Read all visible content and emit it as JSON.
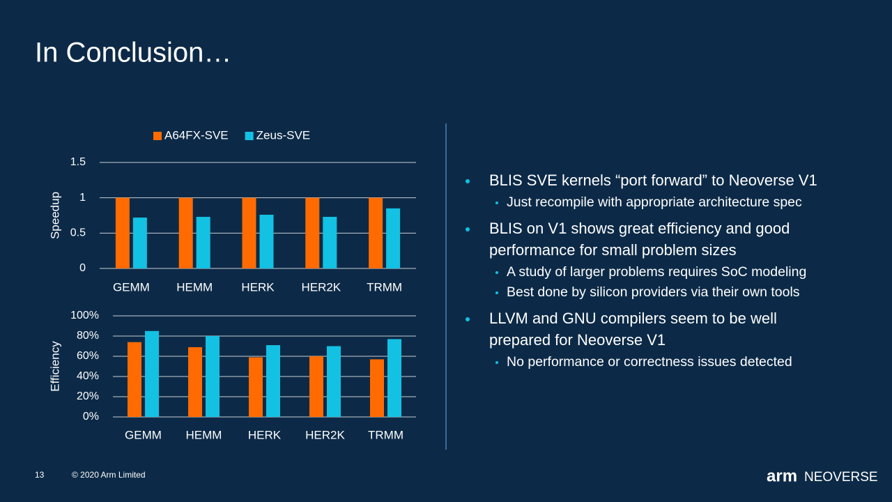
{
  "slide": {
    "title": "In Conclusion…",
    "bullets": [
      {
        "lines": [
          "BLIS SVE kernels “port forward” to Neoverse V1"
        ],
        "sub": [
          "Just recompile with appropriate architecture spec"
        ]
      },
      {
        "lines": [
          "BLIS on V1 shows great efficiency and good",
          "performance for small problem sizes"
        ],
        "sub": [
          "A study of larger problems requires SoC modeling",
          "Best done by silicon providers via their own tools"
        ]
      },
      {
        "lines": [
          "LLVM and GNU compilers seem to be well",
          "prepared for Neoverse V1"
        ],
        "sub": [
          "No performance or correctness issues detected"
        ]
      }
    ],
    "footer": {
      "page": "13",
      "copyright": "© 2020 Arm Limited",
      "logo": "arm",
      "product": "NEOVERSE"
    }
  },
  "chart_data": [
    {
      "type": "bar",
      "ylabel": "Speedup",
      "legend": "top",
      "categories": [
        "GEMM",
        "HEMM",
        "HERK",
        "HER2K",
        "TRMM"
      ],
      "series": [
        {
          "name": "A64FX-SVE",
          "color": "#ff6b00",
          "values": [
            1,
            1,
            1,
            1,
            1
          ]
        },
        {
          "name": "Zeus-SVE",
          "color": "#13c1e3",
          "values": [
            0.72,
            0.73,
            0.76,
            0.73,
            0.85
          ]
        }
      ],
      "ylim": [
        0,
        1.5
      ],
      "yticks": [
        0,
        0.5,
        1,
        1.5
      ],
      "grid": true
    },
    {
      "type": "bar",
      "ylabel": "Efficiency",
      "categories": [
        "GEMM",
        "HEMM",
        "HERK",
        "HER2K",
        "TRMM"
      ],
      "series": [
        {
          "color": "#ff6b00",
          "values": [
            74,
            69,
            59,
            60,
            57
          ]
        },
        {
          "color": "#13c1e3",
          "values": [
            85,
            80,
            71,
            70,
            77
          ]
        }
      ],
      "ylim": [
        0,
        100
      ],
      "yticks": [
        {
          "value": 0,
          "label": "0%"
        },
        {
          "value": 20,
          "label": "20%"
        },
        {
          "value": 40,
          "label": "40%"
        },
        {
          "value": 60,
          "label": "60%"
        },
        {
          "value": 80,
          "label": "80%"
        },
        {
          "value": 100,
          "label": "100%"
        }
      ],
      "grid": true
    }
  ]
}
